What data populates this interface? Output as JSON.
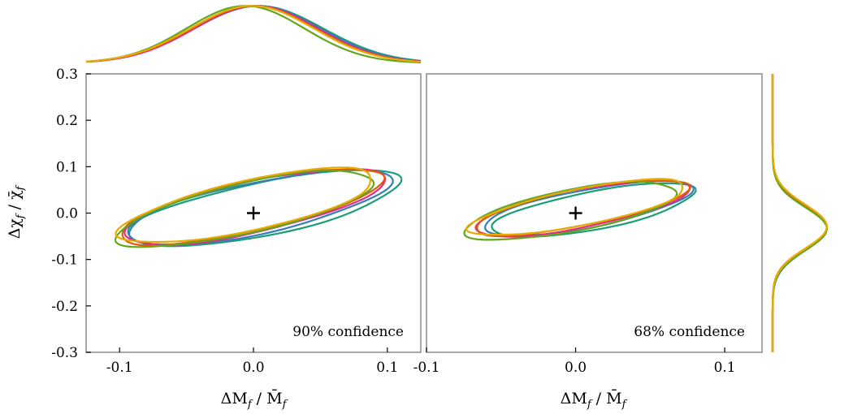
{
  "chart_data": {
    "type": "contour",
    "title": "",
    "series_colors": [
      "#1b9e77",
      "#377eb8",
      "#e7298a",
      "#d95f02",
      "#66a61e",
      "#e6ab02"
    ],
    "panels": [
      {
        "name": "90-percent",
        "label": "90% confidence",
        "xlabel": "ΔM_f / M̄_f",
        "ylabel": "Δχ_f / χ̄_f",
        "xlim": [
          -0.125,
          0.125
        ],
        "ylim": [
          -0.3,
          0.3
        ],
        "xticks": [
          "-0.1",
          "0.0",
          "0.1"
        ],
        "yticks": [
          "-0.3",
          "-0.2",
          "-0.1",
          "0.0",
          "0.1",
          "0.2",
          "0.3"
        ],
        "marker": [
          0.0,
          0.0
        ],
        "contours": [
          {
            "cx": 0.008,
            "cy": 0.01,
            "a": 0.107,
            "b": 0.031,
            "angle_deg": 19
          },
          {
            "cx": 0.004,
            "cy": 0.012,
            "a": 0.104,
            "b": 0.03,
            "angle_deg": 19.5
          },
          {
            "cx": 0.0,
            "cy": 0.014,
            "a": 0.103,
            "b": 0.03,
            "angle_deg": 20
          },
          {
            "cx": -0.002,
            "cy": 0.015,
            "a": 0.104,
            "b": 0.029,
            "angle_deg": 20.5
          },
          {
            "cx": -0.006,
            "cy": 0.01,
            "a": 0.102,
            "b": 0.029,
            "angle_deg": 21
          },
          {
            "cx": -0.004,
            "cy": 0.016,
            "a": 0.101,
            "b": 0.029,
            "angle_deg": 20.5
          }
        ]
      },
      {
        "name": "68-percent",
        "label": "68% confidence",
        "xlabel": "ΔM_f / M̄_f",
        "ylabel": "",
        "xlim": [
          -0.1,
          0.125
        ],
        "ylim": [
          -0.3,
          0.3
        ],
        "xticks": [
          "-0.1",
          "0.0",
          "0.1"
        ],
        "marker": [
          0.0,
          0.0
        ],
        "contours": [
          {
            "cx": 0.012,
            "cy": 0.006,
            "a": 0.072,
            "b": 0.022,
            "angle_deg": 20
          },
          {
            "cx": 0.008,
            "cy": 0.01,
            "a": 0.074,
            "b": 0.022,
            "angle_deg": 20
          },
          {
            "cx": 0.004,
            "cy": 0.01,
            "a": 0.076,
            "b": 0.022,
            "angle_deg": 20
          },
          {
            "cx": 0.004,
            "cy": 0.012,
            "a": 0.076,
            "b": 0.021,
            "angle_deg": 20.5
          },
          {
            "cx": -0.003,
            "cy": 0.005,
            "a": 0.075,
            "b": 0.024,
            "angle_deg": 20.5
          },
          {
            "cx": 0.002,
            "cy": 0.012,
            "a": 0.077,
            "b": 0.021,
            "angle_deg": 20.5
          }
        ]
      }
    ],
    "marginal_x": {
      "description": "distribution of ΔM_f / M̄_f over the 90% panel x-range",
      "curves": [
        {
          "mu": 0.004,
          "sigma": 0.048
        },
        {
          "mu": 0.003,
          "sigma": 0.047
        },
        {
          "mu": 0.002,
          "sigma": 0.046
        },
        {
          "mu": 0.0,
          "sigma": 0.046
        },
        {
          "mu": -0.006,
          "sigma": 0.044
        },
        {
          "mu": -0.001,
          "sigma": 0.046
        }
      ]
    },
    "marginal_y": {
      "description": "distribution of Δχ_f / χ̄_f over the shared y-range",
      "curves": [
        {
          "mu": -0.032,
          "sigma": 0.048
        },
        {
          "mu": -0.031,
          "sigma": 0.047
        },
        {
          "mu": -0.03,
          "sigma": 0.047
        },
        {
          "mu": -0.03,
          "sigma": 0.046
        },
        {
          "mu": -0.034,
          "sigma": 0.046
        },
        {
          "mu": -0.029,
          "sigma": 0.047
        }
      ]
    }
  }
}
